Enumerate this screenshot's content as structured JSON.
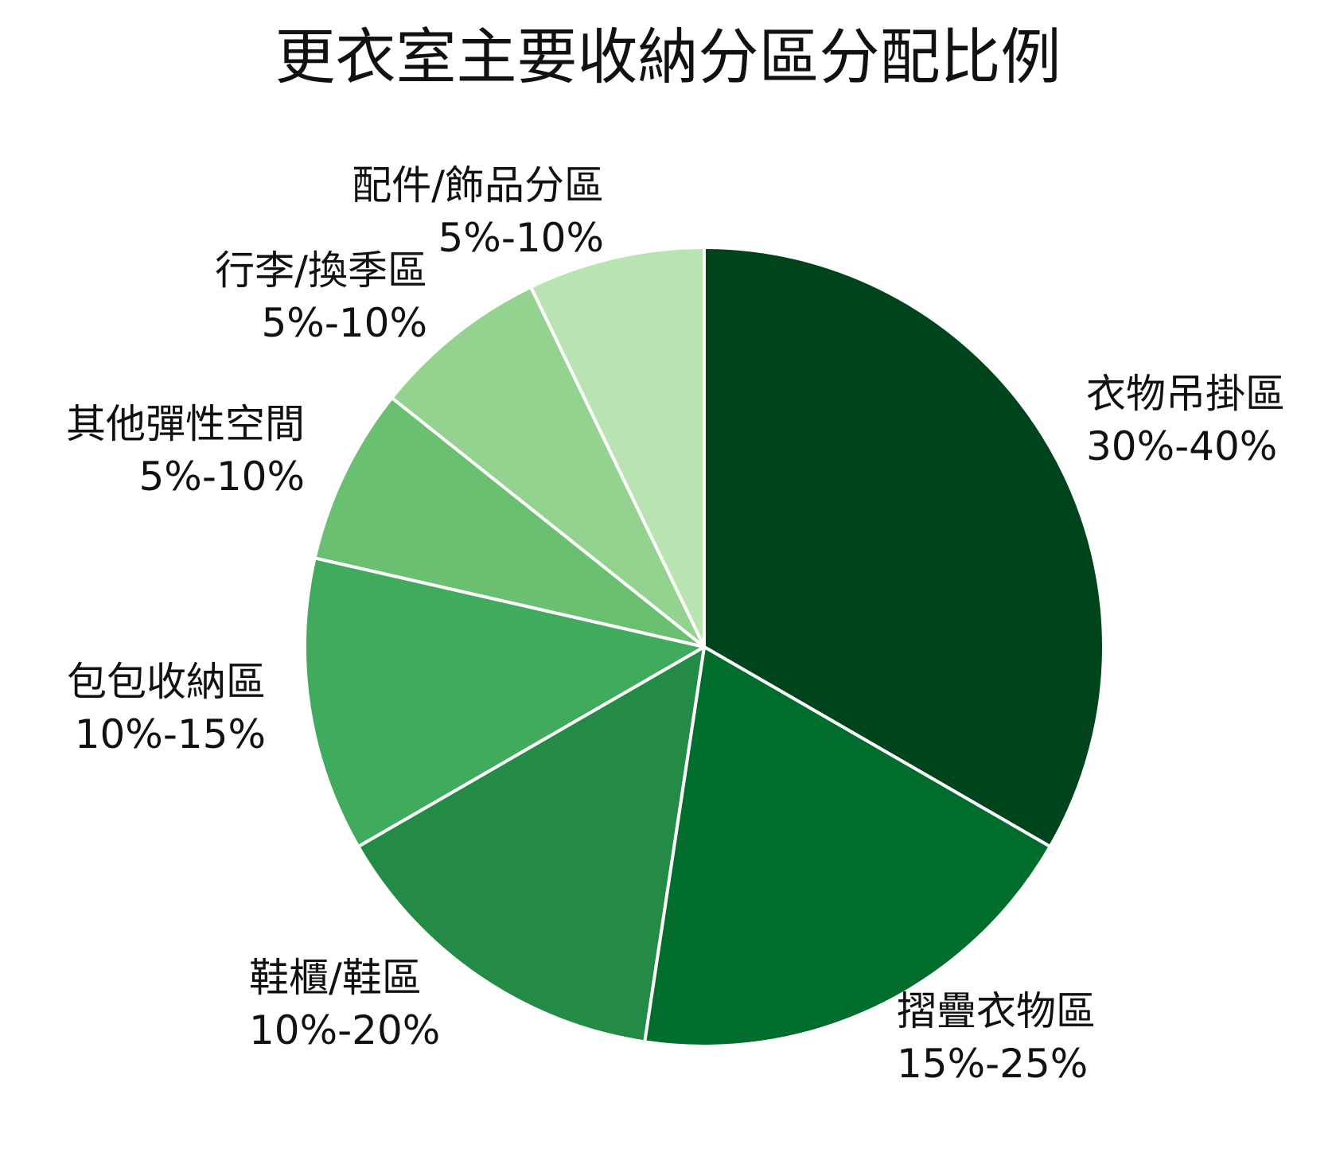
{
  "chart_data": {
    "type": "pie",
    "title": "更衣室主要收納分區分配比例",
    "start_angle": "12 o'clock, clockwise",
    "slices": [
      {
        "label": "衣物吊掛區",
        "range": "30%-40%",
        "value": 35,
        "color": "#00441b"
      },
      {
        "label": "摺疊衣物區",
        "range": "15%-25%",
        "value": 20,
        "color": "#006d2c"
      },
      {
        "label": "鞋櫃/鞋區",
        "range": "10%-20%",
        "value": 15,
        "color": "#238b45"
      },
      {
        "label": "包包收納區",
        "range": "10%-15%",
        "value": 12.5,
        "color": "#41ab5d"
      },
      {
        "label": "其他彈性空間",
        "range": "5%-10%",
        "value": 7.5,
        "color": "#6abf71"
      },
      {
        "label": "行李/換季區",
        "range": "5%-10%",
        "value": 7.5,
        "color": "#94d290"
      },
      {
        "label": "配件/飾品分區",
        "range": "5%-10%",
        "value": 7.5,
        "color": "#b9e3b2"
      }
    ],
    "legend": "none (direct labels)"
  }
}
